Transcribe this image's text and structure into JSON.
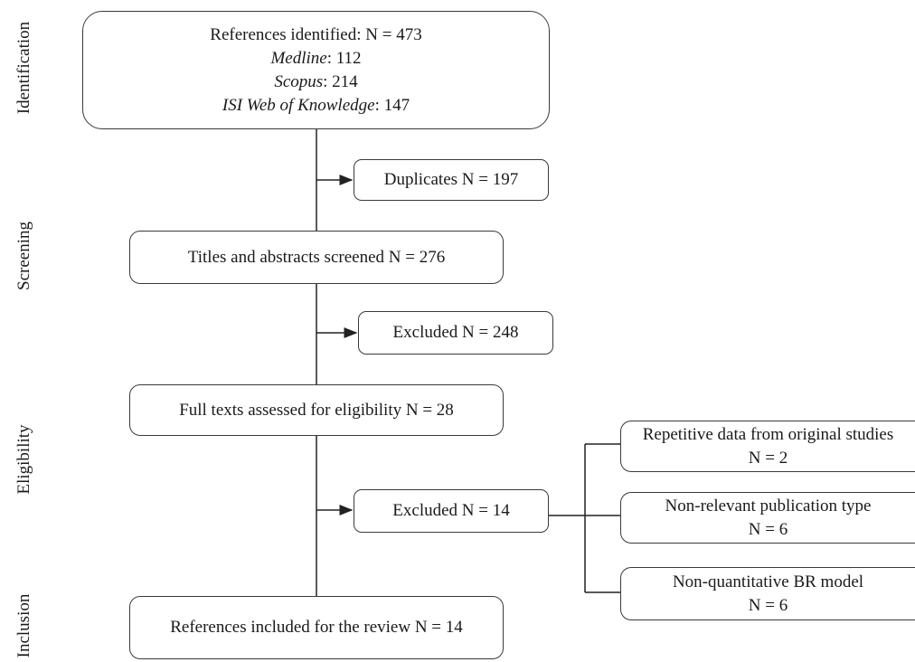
{
  "phases": {
    "identification": "Identification",
    "screening": "Screening",
    "eligibility": "Eligibility",
    "inclusion": "Inclusion"
  },
  "identified": {
    "total": "References identified: N = 473",
    "sources": [
      {
        "name": "Medline",
        "count": ": 112"
      },
      {
        "name": "Scopus",
        "count": ": 214"
      },
      {
        "name": "ISI Web of Knowledge",
        "count": ": 147"
      }
    ]
  },
  "duplicates": "Duplicates N = 197",
  "screened": "Titles and abstracts screened N = 276",
  "excluded_screening": "Excluded N = 248",
  "fulltext": "Full texts assessed for eligibility N = 28",
  "excluded_fulltext": "Excluded N = 14",
  "exclusion_reasons": [
    {
      "label": "Repetitive data from original studies",
      "count": "N = 2"
    },
    {
      "label": "Non-relevant publication type",
      "count": "N = 6"
    },
    {
      "label": "Non-quantitative BR model",
      "count": "N = 6"
    }
  ],
  "included": "References included for the review N = 14"
}
